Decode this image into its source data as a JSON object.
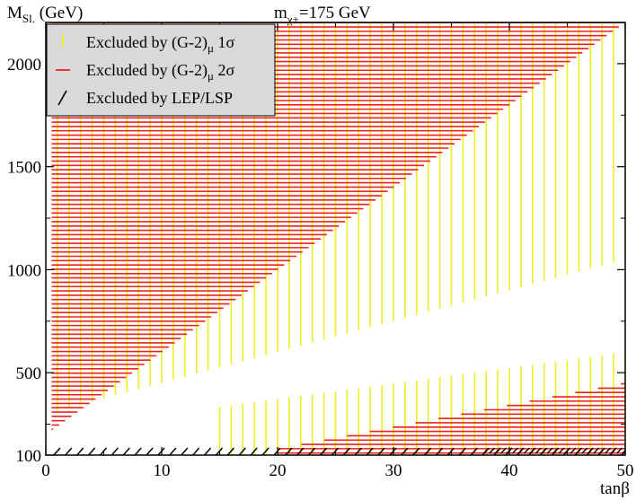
{
  "chart_data": {
    "type": "scatter",
    "title": {
      "main": "m",
      "sub": "χ+",
      "rest": "=175 GeV"
    },
    "xlabel": "tanβ",
    "ylabel": {
      "main": "M",
      "sub": "Sl.",
      "rest": " (GeV)"
    },
    "xlim": [
      0,
      50
    ],
    "ylim": [
      100,
      2200
    ],
    "x_ticks": [
      0,
      10,
      20,
      30,
      40,
      50
    ],
    "y_ticks": [
      100,
      500,
      1000,
      1500,
      2000
    ],
    "grid": false,
    "legend_position": "top-left",
    "series": [
      {
        "name": "Excluded by (G-2)",
        "sub": "μ",
        "suffix": " 1σ",
        "color": "#f0ee20",
        "marker": "vertical-dash",
        "regions": [
          {
            "x_from": 0,
            "x_to": 50,
            "y_lower_at_x0": 100,
            "y_lower_at_x50": 100,
            "y_upper_at_x0": 2200,
            "y_upper_at_x50": 2200,
            "excludes_wedge": {
              "top_at_x0": 220,
              "top_at_x50": 600,
              "bottom_at_x0": 100,
              "bottom_at_x50": 100,
              "gap_lower_at_x0": 300,
              "gap_lower_at_x50": 600,
              "gap_upper_at_x0": 300,
              "gap_upper_at_x50": 1050
            }
          }
        ]
      },
      {
        "name": "Excluded by (G-2)",
        "sub": "μ",
        "suffix": " 2σ",
        "color": "#e8231c",
        "marker": "horizontal-dash",
        "regions": [
          {
            "shape": "upper-triangle",
            "y_boundary_at_x0": 200,
            "y_boundary_at_x50": 2200,
            "y_top": 2200
          },
          {
            "shape": "lower-triangle",
            "y_top_at_x20": 130,
            "y_top_at_x50": 450,
            "y_bottom": 110
          }
        ]
      },
      {
        "name": "Excluded by LEP/LSP",
        "sub": "",
        "suffix": "",
        "color": "#000000",
        "marker": "slash",
        "regions": [
          {
            "y_from": 100,
            "y_to": 135,
            "x_from": 0,
            "x_to": 50
          }
        ]
      }
    ]
  }
}
